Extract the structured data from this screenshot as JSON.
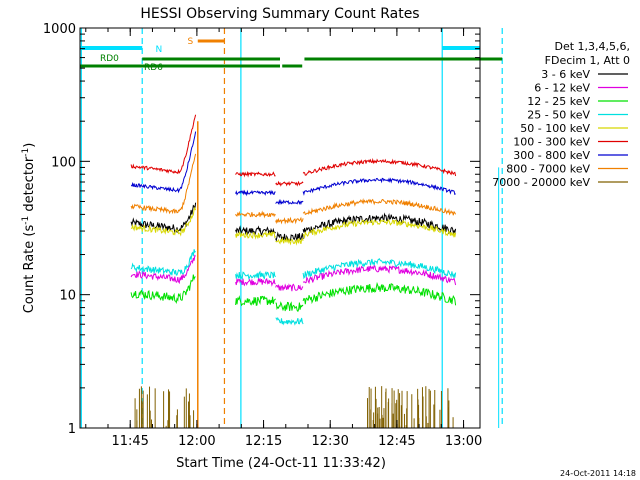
{
  "chart_data": {
    "type": "line",
    "title": "HESSI Observing Summary Count Rates",
    "xlabel": "Start Time (24-Oct-11 11:33:42)",
    "ylabel_main": "Count Rate (s",
    "ylabel_sup1": "-1",
    "ylabel_mid": " detector",
    "ylabel_sup2": "-1",
    "ylabel_end": ")",
    "x_range_minutes": [
      0,
      90
    ],
    "ylim": [
      1,
      1000
    ],
    "y_scale": "log",
    "x_ticks": [
      {
        "label": "11:45",
        "minute": 11.3
      },
      {
        "label": "12:00",
        "minute": 26.3
      },
      {
        "label": "12:15",
        "minute": 41.3
      },
      {
        "label": "12:30",
        "minute": 56.3
      },
      {
        "label": "12:45",
        "minute": 71.3
      },
      {
        "label": "13:00",
        "minute": 86.3
      }
    ],
    "y_ticks": [
      {
        "label": "1",
        "value": 1
      },
      {
        "label": "10",
        "value": 10
      },
      {
        "label": "100",
        "value": 100
      },
      {
        "label": "1000",
        "value": 1000
      }
    ],
    "legend_header": [
      "Det 1,3,4,5,6,",
      "FDecim 1, Att 0"
    ],
    "series": [
      {
        "name": "3 - 6 keV",
        "color": "#000000",
        "level": 30,
        "noise": 0.07
      },
      {
        "name": "6 - 12 keV",
        "color": "#e000e0",
        "level": 12.5,
        "noise": 0.06
      },
      {
        "name": "12 - 25 keV",
        "color": "#00e000",
        "level": 9,
        "noise": 0.08
      },
      {
        "name": "25 - 50 keV",
        "color": "#00e0e0",
        "level": 14,
        "noise": 0.06
      },
      {
        "name": "50 - 100 keV",
        "color": "#d8d800",
        "level": 28,
        "noise": 0.05
      },
      {
        "name": "100 - 300 keV",
        "color": "#e00000",
        "level": 80,
        "noise": 0.03
      },
      {
        "name": "300 - 800 keV",
        "color": "#0000d0",
        "level": 58,
        "noise": 0.03
      },
      {
        "name": "800 - 7000 keV",
        "color": "#f08000",
        "level": 40,
        "noise": 0.04
      },
      {
        "name": "7000 - 20000 keV",
        "color": "#806000",
        "level": 0,
        "noise": 0
      }
    ],
    "flag_bars": [
      {
        "label": "N",
        "color": "#00e0ff"
      },
      {
        "label": "S",
        "color": "#f08000"
      },
      {
        "label": "RD0",
        "color": "#008000"
      },
      {
        "label": "RD6",
        "color": "#008000"
      }
    ]
  },
  "footer_timestamp": "24-Oct-2011 14:18"
}
